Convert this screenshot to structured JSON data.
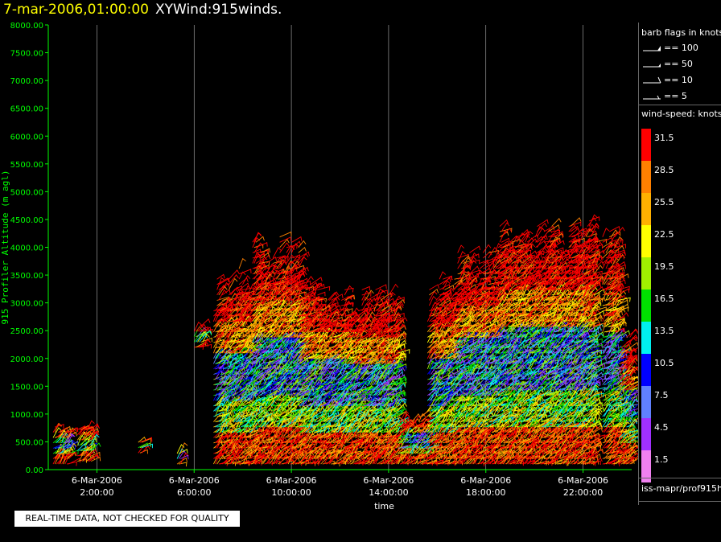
{
  "header": {
    "date": "7-mar-2006,01:00:00",
    "name": "XYWind:915winds."
  },
  "chart_data": {
    "type": "scatter",
    "ylabel": "915 Profiler Altitude (m agl)",
    "xlabel": "time",
    "ylim": [
      0,
      8000
    ],
    "xlim": [
      0,
      24
    ],
    "ytick_labels": [
      "0.00",
      "500.00",
      "1000.00",
      "1500.00",
      "2000.00",
      "2500.00",
      "3000.00",
      "3500.00",
      "4000.00",
      "4500.00",
      "5000.00",
      "5500.00",
      "6000.00",
      "6500.00",
      "7000.00",
      "7500.00",
      "8000.00"
    ],
    "x_ticks": [
      {
        "x": 2.0,
        "date": "6-Mar-2006",
        "time": "2:00:00"
      },
      {
        "x": 6.0,
        "date": "6-Mar-2006",
        "time": "6:00:00"
      },
      {
        "x": 10.0,
        "date": "6-Mar-2006",
        "time": "10:00:00"
      },
      {
        "x": 14.0,
        "date": "6-Mar-2006",
        "time": "14:00:00"
      },
      {
        "x": 18.0,
        "date": "6-Mar-2006",
        "time": "18:00:00"
      },
      {
        "x": 22.0,
        "date": "6-Mar-2006",
        "time": "22:00:00"
      }
    ],
    "vertical_grid": true,
    "segments": [
      {
        "t0": 0.2,
        "t1": 0.9,
        "ymin": 100,
        "ymax": 800
      },
      {
        "t0": 1.2,
        "t1": 1.8,
        "ymin": 150,
        "ymax": 800
      },
      {
        "t0": 3.7,
        "t1": 3.9,
        "ymin": 300,
        "ymax": 600
      },
      {
        "t0": 5.3,
        "t1": 5.5,
        "ymin": 100,
        "ymax": 400
      },
      {
        "t0": 6.0,
        "t1": 6.4,
        "ymin": 2200,
        "ymax": 2600
      },
      {
        "t0": 6.8,
        "t1": 8.4,
        "ymin": 100,
        "ymax": 3700
      },
      {
        "t0": 8.4,
        "t1": 10.3,
        "ymin": 100,
        "ymax": 4200
      },
      {
        "t0": 10.3,
        "t1": 12.2,
        "ymin": 100,
        "ymax": 3400
      },
      {
        "t0": 12.2,
        "t1": 14.4,
        "ymin": 100,
        "ymax": 3300
      },
      {
        "t0": 14.4,
        "t1": 15.6,
        "ymin": 100,
        "ymax": 1000
      },
      {
        "t0": 15.6,
        "t1": 16.7,
        "ymin": 100,
        "ymax": 3500
      },
      {
        "t0": 16.7,
        "t1": 18.5,
        "ymin": 100,
        "ymax": 4100
      },
      {
        "t0": 18.5,
        "t1": 20.5,
        "ymin": 100,
        "ymax": 4500
      },
      {
        "t0": 20.5,
        "t1": 22.5,
        "ymin": 100,
        "ymax": 4500
      },
      {
        "t0": 22.8,
        "t1": 23.5,
        "ymin": 100,
        "ymax": 4400
      },
      {
        "t0": 23.5,
        "t1": 24.0,
        "ymin": 100,
        "ymax": 2500
      }
    ]
  },
  "legend": {
    "barb_title": "barb flags in knots",
    "barbs": [
      {
        "label": "== 100"
      },
      {
        "label": "== 50"
      },
      {
        "label": "== 10"
      },
      {
        "label": "== 5"
      }
    ],
    "speed_title": "wind-speed: knots",
    "speed_scale": [
      {
        "label": "31.5",
        "color": "#ff0000"
      },
      {
        "label": "28.5",
        "color": "#ff8000"
      },
      {
        "label": "25.5",
        "color": "#ffb000"
      },
      {
        "label": "22.5",
        "color": "#ffff00"
      },
      {
        "label": "19.5",
        "color": "#a0f000"
      },
      {
        "label": "16.5",
        "color": "#00e000"
      },
      {
        "label": "13.5",
        "color": "#00f0f0"
      },
      {
        "label": "10.5",
        "color": "#0000ff"
      },
      {
        "label": "7.5",
        "color": "#6080ff"
      },
      {
        "label": "4.5",
        "color": "#a030ff"
      },
      {
        "label": "1.5",
        "color": "#f080f0"
      }
    ],
    "source": "iss-mapr/prof915h"
  },
  "footer": {
    "qc_notice": "REAL-TIME DATA, NOT CHECKED FOR QUALITY"
  },
  "colors": {
    "axis": "#00ff00",
    "grid": "#ffffff",
    "title_date": "#ffff00"
  }
}
